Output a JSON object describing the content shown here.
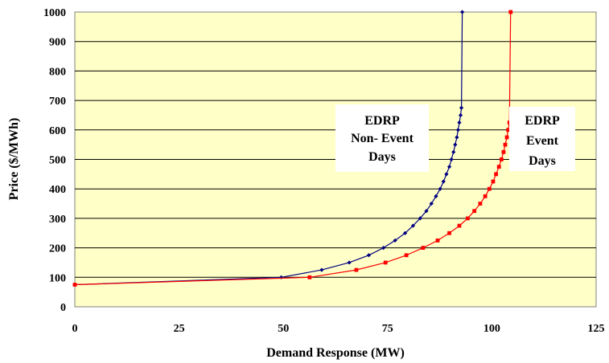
{
  "chart_data": {
    "type": "line",
    "title": "",
    "xlabel": "Demand Response (MW)",
    "ylabel": "Price ($/MWh)",
    "xlim": [
      0,
      125
    ],
    "ylim": [
      0,
      1000
    ],
    "xticks": [
      0,
      25,
      50,
      75,
      100,
      125
    ],
    "yticks": [
      0,
      100,
      200,
      300,
      400,
      500,
      600,
      700,
      800,
      900,
      1000
    ],
    "grid": "horizontal",
    "legend": "none",
    "plot_background": "#ffffc8",
    "annotations": [
      {
        "lines": [
          "EDRP",
          "Non- Event",
          "Days"
        ]
      },
      {
        "lines": [
          "EDRP",
          "Event",
          "Days"
        ]
      }
    ],
    "series": [
      {
        "color": "#000080",
        "marker": "diamond",
        "x": [
          0,
          49.5,
          59.2,
          65.8,
          70.5,
          74,
          76.8,
          79.2,
          81.1,
          82.8,
          84.3,
          85.5,
          86.6,
          87.6,
          88.4,
          89.1,
          89.8,
          90.3,
          90.8,
          91.2,
          91.6,
          91.9,
          92.2,
          92.5,
          92.7,
          92.9
        ],
        "y": [
          75,
          100,
          125,
          150,
          175,
          200,
          225,
          250,
          275,
          300,
          325,
          350,
          375,
          400,
          425,
          450,
          475,
          500,
          525,
          550,
          575,
          600,
          625,
          650,
          675,
          1000
        ]
      },
      {
        "color": "#ff0000",
        "marker": "square",
        "x": [
          0,
          56.3,
          67.5,
          74.5,
          79.5,
          83.5,
          87,
          89.8,
          92.2,
          94.2,
          95.8,
          97.2,
          98.4,
          99.4,
          100.3,
          101,
          101.7,
          102.3,
          102.8,
          103.2,
          103.6,
          103.9,
          104.2,
          104.5
        ],
        "y": [
          75,
          100,
          125,
          150,
          175,
          200,
          225,
          250,
          275,
          300,
          325,
          350,
          375,
          400,
          425,
          450,
          475,
          500,
          525,
          550,
          575,
          600,
          625,
          1000
        ]
      }
    ]
  }
}
